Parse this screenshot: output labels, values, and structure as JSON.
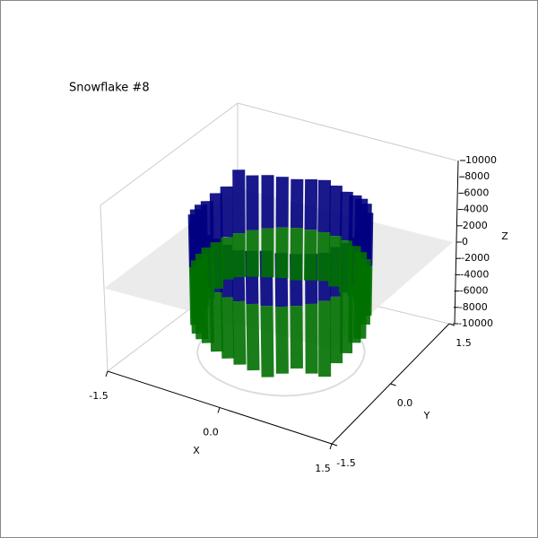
{
  "chart_data": {
    "type": "ribbon3d",
    "title": "Snowflake #8",
    "x_label": "X",
    "y_label": "Y",
    "z_label": "Z",
    "xlim": [
      -1.5,
      1.5
    ],
    "ylim": [
      -1.5,
      1.5
    ],
    "zlim": [
      -10000,
      10000
    ],
    "xticks": [
      -1.5,
      {
        "value": 0,
        "label": "0.0"
      },
      1.5
    ],
    "yticks": [
      -1.5,
      {
        "value": 0,
        "label": "0.0"
      },
      1.5
    ],
    "zticks": [
      -10000,
      -8000,
      -6000,
      -4000,
      -2000,
      0,
      2000,
      4000,
      6000,
      8000,
      10000
    ],
    "grid": false,
    "plane_color": "#e8e8e8",
    "shadow_color": "#dddddd",
    "x": [
      1,
      0.98,
      0.94,
      0.87,
      0.77,
      0.64,
      0.5,
      0.34,
      0.17,
      0,
      -0.17,
      -0.34,
      -0.5,
      -0.64,
      -0.77,
      -0.87,
      -0.94,
      -0.98,
      -1,
      -0.98,
      -0.94,
      -0.87,
      -0.77,
      -0.64,
      -0.5,
      -0.34,
      -0.17,
      0,
      0.17,
      0.34,
      0.5,
      0.64,
      0.77,
      0.87,
      0.94,
      0.98
    ],
    "y": [
      0,
      0.17,
      0.34,
      0.5,
      0.64,
      0.77,
      0.87,
      0.94,
      0.98,
      1,
      0.98,
      0.94,
      0.87,
      0.77,
      0.64,
      0.5,
      0.34,
      0.17,
      0,
      -0.17,
      -0.34,
      -0.5,
      -0.64,
      -0.77,
      -0.87,
      -0.94,
      -0.98,
      -1,
      -0.98,
      -0.94,
      -0.87,
      -0.77,
      -0.64,
      -0.5,
      -0.34,
      -0.17
    ],
    "series": [
      {
        "color": "#000080",
        "values": [
          5500,
          5800,
          6000,
          6200,
          6500,
          6300,
          6000,
          5800,
          6000,
          6200,
          6000,
          5800,
          6000,
          6300,
          6500,
          7500,
          6000,
          5800,
          5500,
          5800,
          6000,
          6200,
          6000,
          5800,
          6000,
          6200,
          6000,
          5800,
          6000,
          6200,
          6000,
          5800,
          5600,
          5400,
          5600,
          5500
        ]
      },
      {
        "color": "#007000",
        "values": [
          -6500,
          -6800,
          -6000,
          -5800,
          -5500,
          -5800,
          -6000,
          -6200,
          -6000,
          -5800,
          -6000,
          -6200,
          -6000,
          -5800,
          -5500,
          -5200,
          -5000,
          -5500,
          -6000,
          -6200,
          -6500,
          -6800,
          -7000,
          -6800,
          -6500,
          -6800,
          -7000,
          -7200,
          -7500,
          -8000,
          -7500,
          -7000,
          -7800,
          -8500,
          -7500,
          -7000
        ]
      }
    ]
  }
}
